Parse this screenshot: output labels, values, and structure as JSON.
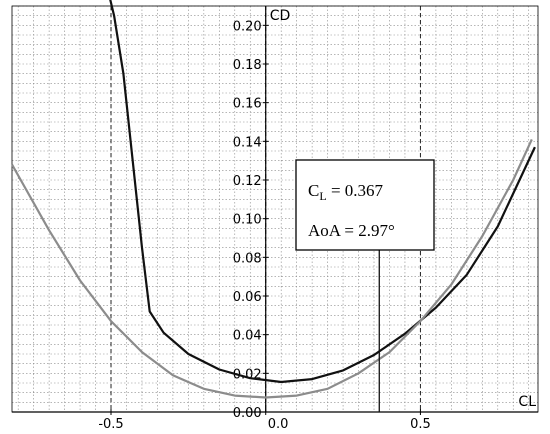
{
  "chart_data": {
    "type": "line",
    "title": "",
    "xlabel": "CL",
    "ylabel": "CD",
    "xlim": [
      -0.82,
      0.88
    ],
    "ylim": [
      0.0,
      0.21
    ],
    "x_ticks": [
      -0.5,
      0.0,
      0.5
    ],
    "x_tick_labels": [
      "-0.5",
      "0.0",
      "0.5"
    ],
    "y_ticks": [
      0.0,
      0.02,
      0.04,
      0.06,
      0.08,
      0.1,
      0.12,
      0.14,
      0.16,
      0.18,
      0.2
    ],
    "y_tick_labels": [
      "0.00",
      "0.02",
      "0.04",
      "0.06",
      "0.08",
      "0.10",
      "0.12",
      "0.14",
      "0.16",
      "0.18",
      "0.20"
    ],
    "grid": true,
    "series": [
      {
        "color": "#111111",
        "points": [
          [
            -0.52,
            0.225
          ],
          [
            -0.49,
            0.205
          ],
          [
            -0.46,
            0.175
          ],
          [
            -0.43,
            0.13
          ],
          [
            -0.4,
            0.085
          ],
          [
            -0.375,
            0.052
          ],
          [
            -0.33,
            0.041
          ],
          [
            -0.25,
            0.03
          ],
          [
            -0.15,
            0.022
          ],
          [
            -0.05,
            0.0175
          ],
          [
            0.05,
            0.0155
          ],
          [
            0.15,
            0.017
          ],
          [
            0.25,
            0.0215
          ],
          [
            0.35,
            0.0295
          ],
          [
            0.45,
            0.0405
          ],
          [
            0.55,
            0.054
          ],
          [
            0.65,
            0.071
          ],
          [
            0.75,
            0.096
          ],
          [
            0.87,
            0.137
          ]
        ]
      },
      {
        "color": "#8c8c8c",
        "points": [
          [
            -0.82,
            0.128
          ],
          [
            -0.7,
            0.094
          ],
          [
            -0.6,
            0.068
          ],
          [
            -0.5,
            0.047
          ],
          [
            -0.4,
            0.031
          ],
          [
            -0.3,
            0.019
          ],
          [
            -0.2,
            0.012
          ],
          [
            -0.1,
            0.0085
          ],
          [
            0.0,
            0.0075
          ],
          [
            0.1,
            0.0085
          ],
          [
            0.2,
            0.012
          ],
          [
            0.3,
            0.02
          ],
          [
            0.4,
            0.031
          ],
          [
            0.5,
            0.047
          ],
          [
            0.6,
            0.066
          ],
          [
            0.7,
            0.091
          ],
          [
            0.8,
            0.12
          ],
          [
            0.86,
            0.141
          ]
        ]
      }
    ],
    "marker_line": {
      "x": 0.367,
      "color": "#111111"
    },
    "annotation": {
      "line1": "C",
      "line1_sub": "L",
      "line1_value": " = 0.367",
      "line2": "AoA = 2.97°"
    }
  }
}
